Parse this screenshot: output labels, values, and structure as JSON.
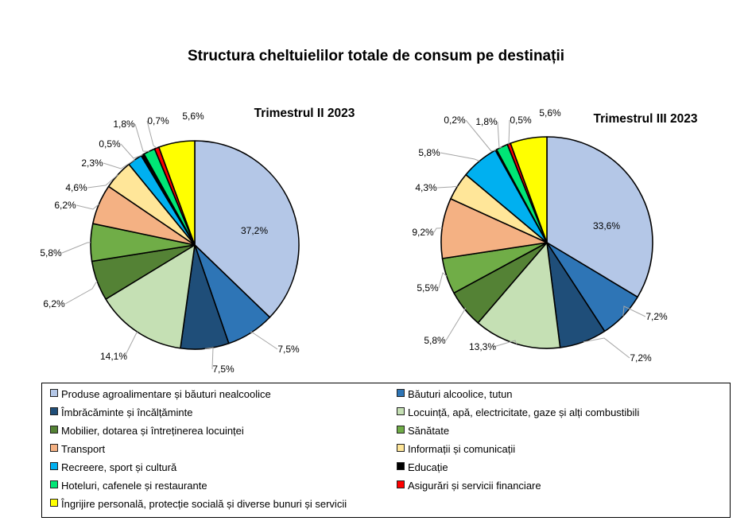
{
  "title": "Structura cheltuielilor totale de consum pe destinații",
  "categories": [
    "Produse agroalimentare și băuturi nealcoolice",
    "Băuturi alcoolice, tutun",
    "Îmbrăcăminte și încălțăminte",
    "Locuință, apă, electricitate, gaze și alți combustibili",
    "Mobilier, dotarea și întreținerea locuinței",
    "Sănătate",
    "Transport",
    "Informații și comunicații",
    "Recreere, sport și cultură",
    "Educație",
    "Hoteluri, cafenele și restaurante",
    "Asigurări și servicii financiare",
    "Îngrijire personală, protecție socială și diverse bunuri și servicii"
  ],
  "colors": [
    "#b4c7e7",
    "#2e75b6",
    "#1f4e79",
    "#c5e0b4",
    "#548235",
    "#70ad47",
    "#f4b183",
    "#ffe699",
    "#00b0f0",
    "#000000",
    "#00e676",
    "#ff0000",
    "#ffff00"
  ],
  "chart_data": [
    {
      "type": "pie",
      "title": "Trimestrul  II 2023",
      "categories": [
        "Produse agroalimentare și băuturi nealcoolice",
        "Băuturi alcoolice, tutun",
        "Îmbrăcăminte și încălțăminte",
        "Locuință, apă, electricitate, gaze și alți combustibili",
        "Mobilier, dotarea și întreținerea locuinței",
        "Sănătate",
        "Transport",
        "Informații și comunicații",
        "Recreere, sport și cultură",
        "Educație",
        "Hoteluri, cafenele și restaurante",
        "Asigurări și servicii financiare",
        "Îngrijire personală, protecție socială și diverse bunuri și servicii"
      ],
      "values": [
        37.2,
        7.5,
        7.5,
        14.1,
        6.2,
        5.8,
        6.2,
        4.6,
        2.3,
        0.5,
        1.8,
        0.7,
        5.6
      ],
      "labels": [
        "37,2%",
        "7,5%",
        "7,5%",
        "14,1%",
        "6,2%",
        "5,8%",
        "6,2%",
        "4,6%",
        "2,3%",
        "0,5%",
        "1,8%",
        "0,7%",
        "5,6%"
      ]
    },
    {
      "type": "pie",
      "title": "Trimestrul  III 2023",
      "categories": [
        "Produse agroalimentare și băuturi nealcoolice",
        "Băuturi alcoolice, tutun",
        "Îmbrăcăminte și încălțăminte",
        "Locuință, apă, electricitate, gaze și alți combustibili",
        "Mobilier, dotarea și întreținerea locuinței",
        "Sănătate",
        "Transport",
        "Informații și comunicații",
        "Recreere, sport și cultură",
        "Educație",
        "Hoteluri, cafenele și restaurante",
        "Asigurări și servicii financiare",
        "Îngrijire personală, protecție socială și diverse bunuri și servicii"
      ],
      "values": [
        33.6,
        7.2,
        7.2,
        13.3,
        5.8,
        5.5,
        9.2,
        4.3,
        5.8,
        0.2,
        1.8,
        0.5,
        5.6
      ],
      "labels": [
        "33,6%",
        "7,2%",
        "7,2%",
        "13,3%",
        "5,8%",
        "5,5%",
        "9,2%",
        "4,3%",
        "5,8%",
        "0,2%",
        "1,8%",
        "0,5%",
        "5,6%"
      ]
    }
  ]
}
